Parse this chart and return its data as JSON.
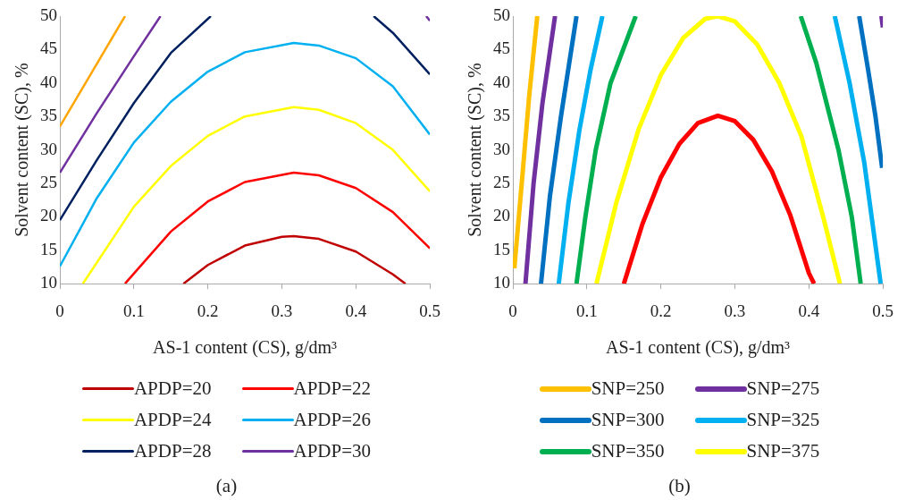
{
  "chart_data": [
    {
      "type": "line",
      "title": "(a)",
      "xlabel": "AS-1 content (CS), g/dm³",
      "ylabel": "Solvent content (SC), %",
      "xlim": [
        0,
        0.5
      ],
      "ylim": [
        10,
        50
      ],
      "xticks": [
        0,
        0.1,
        0.2,
        0.3,
        0.4,
        0.5
      ],
      "yticks": [
        10,
        15,
        20,
        25,
        30,
        35,
        40,
        45,
        50
      ],
      "grid": false,
      "legend": "bottom",
      "marker": "none",
      "line_style": "solid",
      "series": [
        {
          "name": "APDP=20",
          "color": "#c00000",
          "x": [
            0.167,
            0.2,
            0.25,
            0.3,
            0.316,
            0.35,
            0.4,
            0.45,
            0.467
          ],
          "values": [
            10,
            12.8,
            15.7,
            17.0,
            17.1,
            16.7,
            14.8,
            11.4,
            10
          ]
        },
        {
          "name": "APDP=22",
          "color": "#ff0000",
          "x": [
            0.088,
            0.15,
            0.2,
            0.25,
            0.316,
            0.35,
            0.4,
            0.45,
            0.5
          ],
          "values": [
            10,
            17.8,
            22.3,
            25.2,
            26.6,
            26.2,
            24.3,
            20.7,
            15.3
          ]
        },
        {
          "name": "APDP=24",
          "color": "#ffff00",
          "x": [
            0.031,
            0.1,
            0.15,
            0.2,
            0.25,
            0.316,
            0.35,
            0.4,
            0.45,
            0.5
          ],
          "values": [
            10,
            21.5,
            27.6,
            32.1,
            35.0,
            36.4,
            36.0,
            34.0,
            30.0,
            23.8
          ]
        },
        {
          "name": "APDP=26",
          "color": "#00b0f0",
          "x": [
            0,
            0.05,
            0.1,
            0.15,
            0.2,
            0.25,
            0.316,
            0.35,
            0.4,
            0.45,
            0.5
          ],
          "values": [
            12.6,
            22.8,
            31.1,
            37.2,
            41.7,
            44.6,
            46.0,
            45.6,
            43.7,
            39.5,
            32.3
          ]
        },
        {
          "name": "APDP=28",
          "color": "#002060",
          "x": [
            0,
            0.05,
            0.1,
            0.15,
            0.204,
            0.3,
            0.424,
            0.45,
            0.5
          ],
          "values": [
            19.5,
            28.5,
            37,
            44.5,
            50,
            null,
            50,
            47.5,
            41.3
          ]
        },
        {
          "name": "APDP=30",
          "color": "#7030a0",
          "x": [
            0,
            0.05,
            0.1,
            0.136,
            0.3,
            0.495,
            0.5
          ],
          "values": [
            26.6,
            35.5,
            44,
            50,
            null,
            50,
            49.3
          ]
        },
        {
          "color": "#ffa500",
          "x": [
            0,
            0.04,
            0.088
          ],
          "values": [
            33.5,
            41,
            50
          ]
        }
      ]
    },
    {
      "type": "line",
      "title": "(b)",
      "xlabel": "AS-1 content (CS), g/dm³",
      "ylabel": "Solvent content (SC), %",
      "xlim": [
        0,
        0.5
      ],
      "ylim": [
        10,
        50
      ],
      "xticks": [
        0,
        0.1,
        0.2,
        0.3,
        0.4,
        0.5
      ],
      "yticks": [
        10,
        15,
        20,
        25,
        30,
        35,
        40,
        45,
        50
      ],
      "grid": false,
      "legend": "bottom",
      "marker": "none",
      "line_style": "solid",
      "series": [
        {
          "name": "SNP=250",
          "color": "#ffc000",
          "x": [
            0.002,
            0.012,
            0.022,
            0.033
          ],
          "values": [
            12.3,
            25,
            38,
            50
          ]
        },
        {
          "name": "SNP=275",
          "color": "#7030a0",
          "x": [
            0.017,
            0.028,
            0.04,
            0.057,
            0.3,
            0.498,
            0.5
          ],
          "values": [
            10,
            25,
            37,
            50,
            null,
            50,
            48.3
          ]
        },
        {
          "name": "SNP=300",
          "color": "#0070c0",
          "x": [
            0.038,
            0.05,
            0.065,
            0.086,
            0.3,
            0.468,
            0.48,
            0.49,
            0.499
          ],
          "values": [
            10,
            23,
            35,
            50,
            null,
            50,
            42,
            35,
            27.3
          ]
        },
        {
          "name": "SNP=325",
          "color": "#00b0f0",
          "x": [
            0.062,
            0.075,
            0.09,
            0.105,
            0.121,
            0.3,
            0.435,
            0.455,
            0.475,
            0.497
          ],
          "values": [
            10,
            22,
            33,
            42,
            50,
            null,
            50,
            40,
            28,
            10
          ]
        },
        {
          "name": "SNP=350",
          "color": "#00b050",
          "x": [
            0.086,
            0.098,
            0.112,
            0.132,
            0.166,
            0.3,
            0.389,
            0.41,
            0.44,
            0.458,
            0.47
          ],
          "values": [
            10,
            20,
            30,
            40,
            50,
            null,
            50,
            43,
            30,
            20,
            10
          ]
        },
        {
          "name": "SNP=375",
          "color": "#ffff00",
          "x": [
            0.113,
            0.14,
            0.17,
            0.2,
            0.23,
            0.26,
            0.277,
            0.3,
            0.33,
            0.36,
            0.39,
            0.42,
            0.442
          ],
          "values": [
            10,
            22.2,
            33.1,
            41.2,
            46.7,
            49.6,
            50,
            49.2,
            45.8,
            40,
            32,
            19.7,
            10
          ]
        },
        {
          "color": "#ff0000",
          "x": [
            0.15,
            0.175,
            0.2,
            0.225,
            0.25,
            0.277,
            0.3,
            0.325,
            0.35,
            0.375,
            0.4,
            0.407
          ],
          "values": [
            10,
            18.9,
            25.9,
            30.9,
            34.0,
            35.1,
            34.3,
            31.5,
            26.8,
            20.2,
            11.6,
            10
          ]
        }
      ]
    }
  ]
}
